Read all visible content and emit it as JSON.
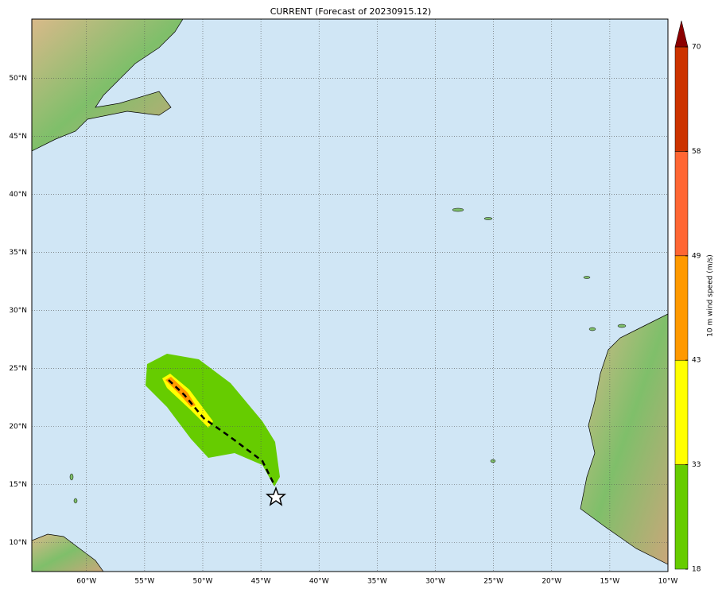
{
  "title": "CURRENT (Forecast of 20230915.12)",
  "map": {
    "xlim": [
      -64.7,
      -10
    ],
    "ylim": [
      7.5,
      55.1
    ],
    "xticks": [
      {
        "value": -60,
        "label": "60°W"
      },
      {
        "value": -55,
        "label": "55°W"
      },
      {
        "value": -50,
        "label": "50°W"
      },
      {
        "value": -45,
        "label": "45°W"
      },
      {
        "value": -40,
        "label": "40°W"
      },
      {
        "value": -35,
        "label": "35°W"
      },
      {
        "value": -30,
        "label": "30°W"
      },
      {
        "value": -25,
        "label": "25°W"
      },
      {
        "value": -20,
        "label": "20°W"
      },
      {
        "value": -15,
        "label": "15°W"
      },
      {
        "value": -10,
        "label": "10°W"
      }
    ],
    "yticks": [
      {
        "value": 10,
        "label": "10°N"
      },
      {
        "value": 15,
        "label": "15°N"
      },
      {
        "value": 20,
        "label": "20°N"
      },
      {
        "value": 25,
        "label": "25°N"
      },
      {
        "value": 30,
        "label": "30°N"
      },
      {
        "value": 35,
        "label": "35°N"
      },
      {
        "value": 40,
        "label": "40°N"
      },
      {
        "value": 45,
        "label": "45°N"
      },
      {
        "value": 50,
        "label": "50°N"
      }
    ],
    "grid": true
  },
  "colorbar": {
    "label": "10 m wind speed (m/s)",
    "ticks": [
      18,
      33,
      43,
      49,
      58,
      70
    ],
    "colors": [
      "#66cc00",
      "#ffff00",
      "#ff9900",
      "#ff6633",
      "#cc3300"
    ],
    "extend_color": "#8b0000"
  }
}
